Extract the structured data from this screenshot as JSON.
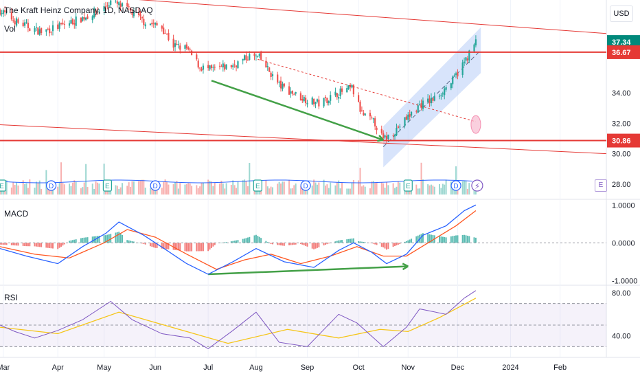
{
  "header": {
    "symbol_title": "The Kraft Heinz Company, 1D, NASDAQ",
    "volume_label": "Vol",
    "currency": "USD"
  },
  "panes": {
    "macd_label": "MACD",
    "rsi_label": "RSI",
    "earnings_marker": "E",
    "dividend_marker": "D"
  },
  "colors": {
    "up": "#26a69a",
    "down": "#ef5350",
    "resistance": "#e53935",
    "arrow": "#43a047",
    "channel": "#b8cdf8",
    "macd_line": "#2962ff",
    "signal_line": "#ff5722",
    "rsi_line": "#7e57c2",
    "rsi_ma": "#f5c518",
    "price_tag": "#00897b"
  },
  "chart_data": {
    "type": "candlestick",
    "price_axis": {
      "ylim": [
        27.0,
        40.1
      ],
      "ticks": [
        "37.34",
        "36.67",
        "34.00",
        "32.00",
        "30.86",
        "30.00",
        "28.00"
      ]
    },
    "price_tags": [
      {
        "value": 37.34,
        "label": "37.34",
        "kind": "last"
      },
      {
        "value": 36.67,
        "label": "36.67",
        "kind": "level"
      },
      {
        "value": 30.86,
        "label": "30.86",
        "kind": "level"
      }
    ],
    "time_axis": {
      "start_date": "2023-02-27",
      "end_date": "2024-02-29",
      "month_labels": [
        {
          "label": "Mar",
          "date": "2023-03-01"
        },
        {
          "label": "Apr",
          "date": "2023-04-03"
        },
        {
          "label": "May",
          "date": "2023-05-01"
        },
        {
          "label": "Jun",
          "date": "2023-06-01"
        },
        {
          "label": "Jul",
          "date": "2023-07-03"
        },
        {
          "label": "Aug",
          "date": "2023-08-01"
        },
        {
          "label": "Sep",
          "date": "2023-09-01"
        },
        {
          "label": "Oct",
          "date": "2023-10-02"
        },
        {
          "label": "Nov",
          "date": "2023-11-01"
        },
        {
          "label": "Dec",
          "date": "2023-12-01"
        },
        {
          "label": "2024",
          "date": "2024-01-02"
        },
        {
          "label": "Feb",
          "date": "2024-02-01"
        }
      ]
    },
    "price_path": [
      [
        "2023-02-27",
        39.4
      ],
      [
        "2023-03-10",
        38.6
      ],
      [
        "2023-03-24",
        38.0
      ],
      [
        "2023-04-05",
        38.4
      ],
      [
        "2023-04-20",
        39.0
      ],
      [
        "2023-05-01",
        39.6
      ],
      [
        "2023-05-05",
        40.0
      ],
      [
        "2023-05-15",
        39.5
      ],
      [
        "2023-05-25",
        38.7
      ],
      [
        "2023-06-05",
        38.3
      ],
      [
        "2023-06-12",
        37.1
      ],
      [
        "2023-06-20",
        36.9
      ],
      [
        "2023-06-28",
        35.7
      ],
      [
        "2023-07-05",
        35.5
      ],
      [
        "2023-07-18",
        35.8
      ],
      [
        "2023-07-28",
        36.4
      ],
      [
        "2023-08-03",
        36.3
      ],
      [
        "2023-08-15",
        34.5
      ],
      [
        "2023-08-28",
        33.7
      ],
      [
        "2023-09-08",
        33.3
      ],
      [
        "2023-09-20",
        34.0
      ],
      [
        "2023-09-28",
        34.3
      ],
      [
        "2023-10-04",
        32.6
      ],
      [
        "2023-10-12",
        32.0
      ],
      [
        "2023-10-17",
        30.9
      ],
      [
        "2023-10-24",
        31.5
      ],
      [
        "2023-10-31",
        32.3
      ],
      [
        "2023-11-08",
        33.2
      ],
      [
        "2023-11-17",
        33.6
      ],
      [
        "2023-11-28",
        34.8
      ],
      [
        "2023-12-05",
        36.0
      ],
      [
        "2023-12-12",
        37.34
      ]
    ],
    "macd_axis": {
      "ylim": [
        -1.12,
        1.15
      ],
      "ticks": [
        "1.0000",
        "0.0000",
        "-1.0000"
      ]
    },
    "macd_path": [
      [
        "2023-02-27",
        -0.15
      ],
      [
        "2023-03-15",
        -0.35
      ],
      [
        "2023-04-03",
        -0.55
      ],
      [
        "2023-04-18",
        -0.1
      ],
      [
        "2023-05-02",
        0.25
      ],
      [
        "2023-05-10",
        0.55
      ],
      [
        "2023-05-25",
        0.2
      ],
      [
        "2023-06-08",
        -0.2
      ],
      [
        "2023-06-20",
        -0.55
      ],
      [
        "2023-07-03",
        -0.83
      ],
      [
        "2023-07-18",
        -0.5
      ],
      [
        "2023-08-01",
        -0.15
      ],
      [
        "2023-08-18",
        -0.5
      ],
      [
        "2023-09-05",
        -0.65
      ],
      [
        "2023-09-20",
        -0.2
      ],
      [
        "2023-09-29",
        0.0
      ],
      [
        "2023-10-10",
        -0.25
      ],
      [
        "2023-10-19",
        -0.55
      ],
      [
        "2023-10-31",
        -0.3
      ],
      [
        "2023-11-10",
        0.2
      ],
      [
        "2023-11-24",
        0.45
      ],
      [
        "2023-12-05",
        0.85
      ],
      [
        "2023-12-12",
        1.0
      ]
    ],
    "signal_path": [
      [
        "2023-02-27",
        -0.1
      ],
      [
        "2023-03-20",
        -0.3
      ],
      [
        "2023-04-10",
        -0.4
      ],
      [
        "2023-05-01",
        0.0
      ],
      [
        "2023-05-15",
        0.35
      ],
      [
        "2023-06-01",
        0.15
      ],
      [
        "2023-06-20",
        -0.3
      ],
      [
        "2023-07-08",
        -0.7
      ],
      [
        "2023-07-25",
        -0.45
      ],
      [
        "2023-08-10",
        -0.3
      ],
      [
        "2023-08-28",
        -0.55
      ],
      [
        "2023-09-15",
        -0.35
      ],
      [
        "2023-10-01",
        -0.1
      ],
      [
        "2023-10-17",
        -0.35
      ],
      [
        "2023-10-31",
        -0.35
      ],
      [
        "2023-11-15",
        0.05
      ],
      [
        "2023-11-30",
        0.45
      ],
      [
        "2023-12-12",
        0.85
      ]
    ],
    "rsi_axis": {
      "ylim": [
        20,
        87
      ],
      "ticks": [
        "80.00",
        "40.00"
      ],
      "band": [
        30,
        70
      ],
      "midline": 50
    },
    "rsi_path": [
      [
        "2023-02-27",
        50
      ],
      [
        "2023-03-08",
        44
      ],
      [
        "2023-03-20",
        38
      ],
      [
        "2023-04-03",
        45
      ],
      [
        "2023-04-18",
        55
      ],
      [
        "2023-05-05",
        72
      ],
      [
        "2023-05-18",
        55
      ],
      [
        "2023-06-05",
        42
      ],
      [
        "2023-06-22",
        38
      ],
      [
        "2023-07-03",
        28
      ],
      [
        "2023-07-18",
        45
      ],
      [
        "2023-08-01",
        62
      ],
      [
        "2023-08-15",
        34
      ],
      [
        "2023-09-01",
        30
      ],
      [
        "2023-09-20",
        60
      ],
      [
        "2023-10-01",
        52
      ],
      [
        "2023-10-17",
        30
      ],
      [
        "2023-10-31",
        48
      ],
      [
        "2023-11-08",
        65
      ],
      [
        "2023-11-24",
        60
      ],
      [
        "2023-12-05",
        75
      ],
      [
        "2023-12-12",
        82
      ]
    ],
    "rsi_ma_path": [
      [
        "2023-02-27",
        48
      ],
      [
        "2023-04-03",
        42
      ],
      [
        "2023-05-10",
        62
      ],
      [
        "2023-06-20",
        44
      ],
      [
        "2023-07-15",
        33
      ],
      [
        "2023-08-20",
        46
      ],
      [
        "2023-09-20",
        38
      ],
      [
        "2023-10-15",
        46
      ],
      [
        "2023-11-01",
        44
      ],
      [
        "2023-11-20",
        57
      ],
      [
        "2023-12-12",
        75
      ]
    ],
    "earnings_dates": [
      "2023-02-28",
      "2023-05-03",
      "2023-08-02",
      "2023-11-01"
    ],
    "dividend_dates": [
      "2023-03-30",
      "2023-06-01",
      "2023-08-31",
      "2023-11-30"
    ],
    "annotations": [
      {
        "type": "horizontal_line",
        "value": 36.67
      },
      {
        "type": "horizontal_line",
        "value": 30.86
      },
      {
        "type": "trend_line",
        "points": [
          [
            "2023-05-12",
            40.2
          ],
          [
            "2024-02-29",
            37.9
          ]
        ]
      },
      {
        "type": "trend_line",
        "points": [
          [
            "2023-02-27",
            31.9
          ],
          [
            "2024-02-29",
            30.0
          ]
        ]
      },
      {
        "type": "trend_line",
        "dashed": true,
        "points": [
          [
            "2023-08-02",
            36.2
          ],
          [
            "2023-12-12",
            32.1
          ]
        ]
      },
      {
        "type": "arrow",
        "pane": "price",
        "points": [
          [
            "2023-07-05",
            34.8
          ],
          [
            "2023-10-17",
            30.9
          ]
        ]
      },
      {
        "type": "arrow",
        "pane": "macd",
        "points": [
          [
            "2023-07-03",
            -0.83
          ],
          [
            "2023-11-01",
            -0.62
          ]
        ]
      },
      {
        "type": "channel",
        "lower_points": [
          [
            "2023-10-17",
            29.1
          ],
          [
            "2023-12-15",
            35.3
          ]
        ],
        "upper_points": [
          [
            "2023-10-17",
            31.8
          ],
          [
            "2023-12-15",
            38.3
          ]
        ]
      }
    ]
  }
}
